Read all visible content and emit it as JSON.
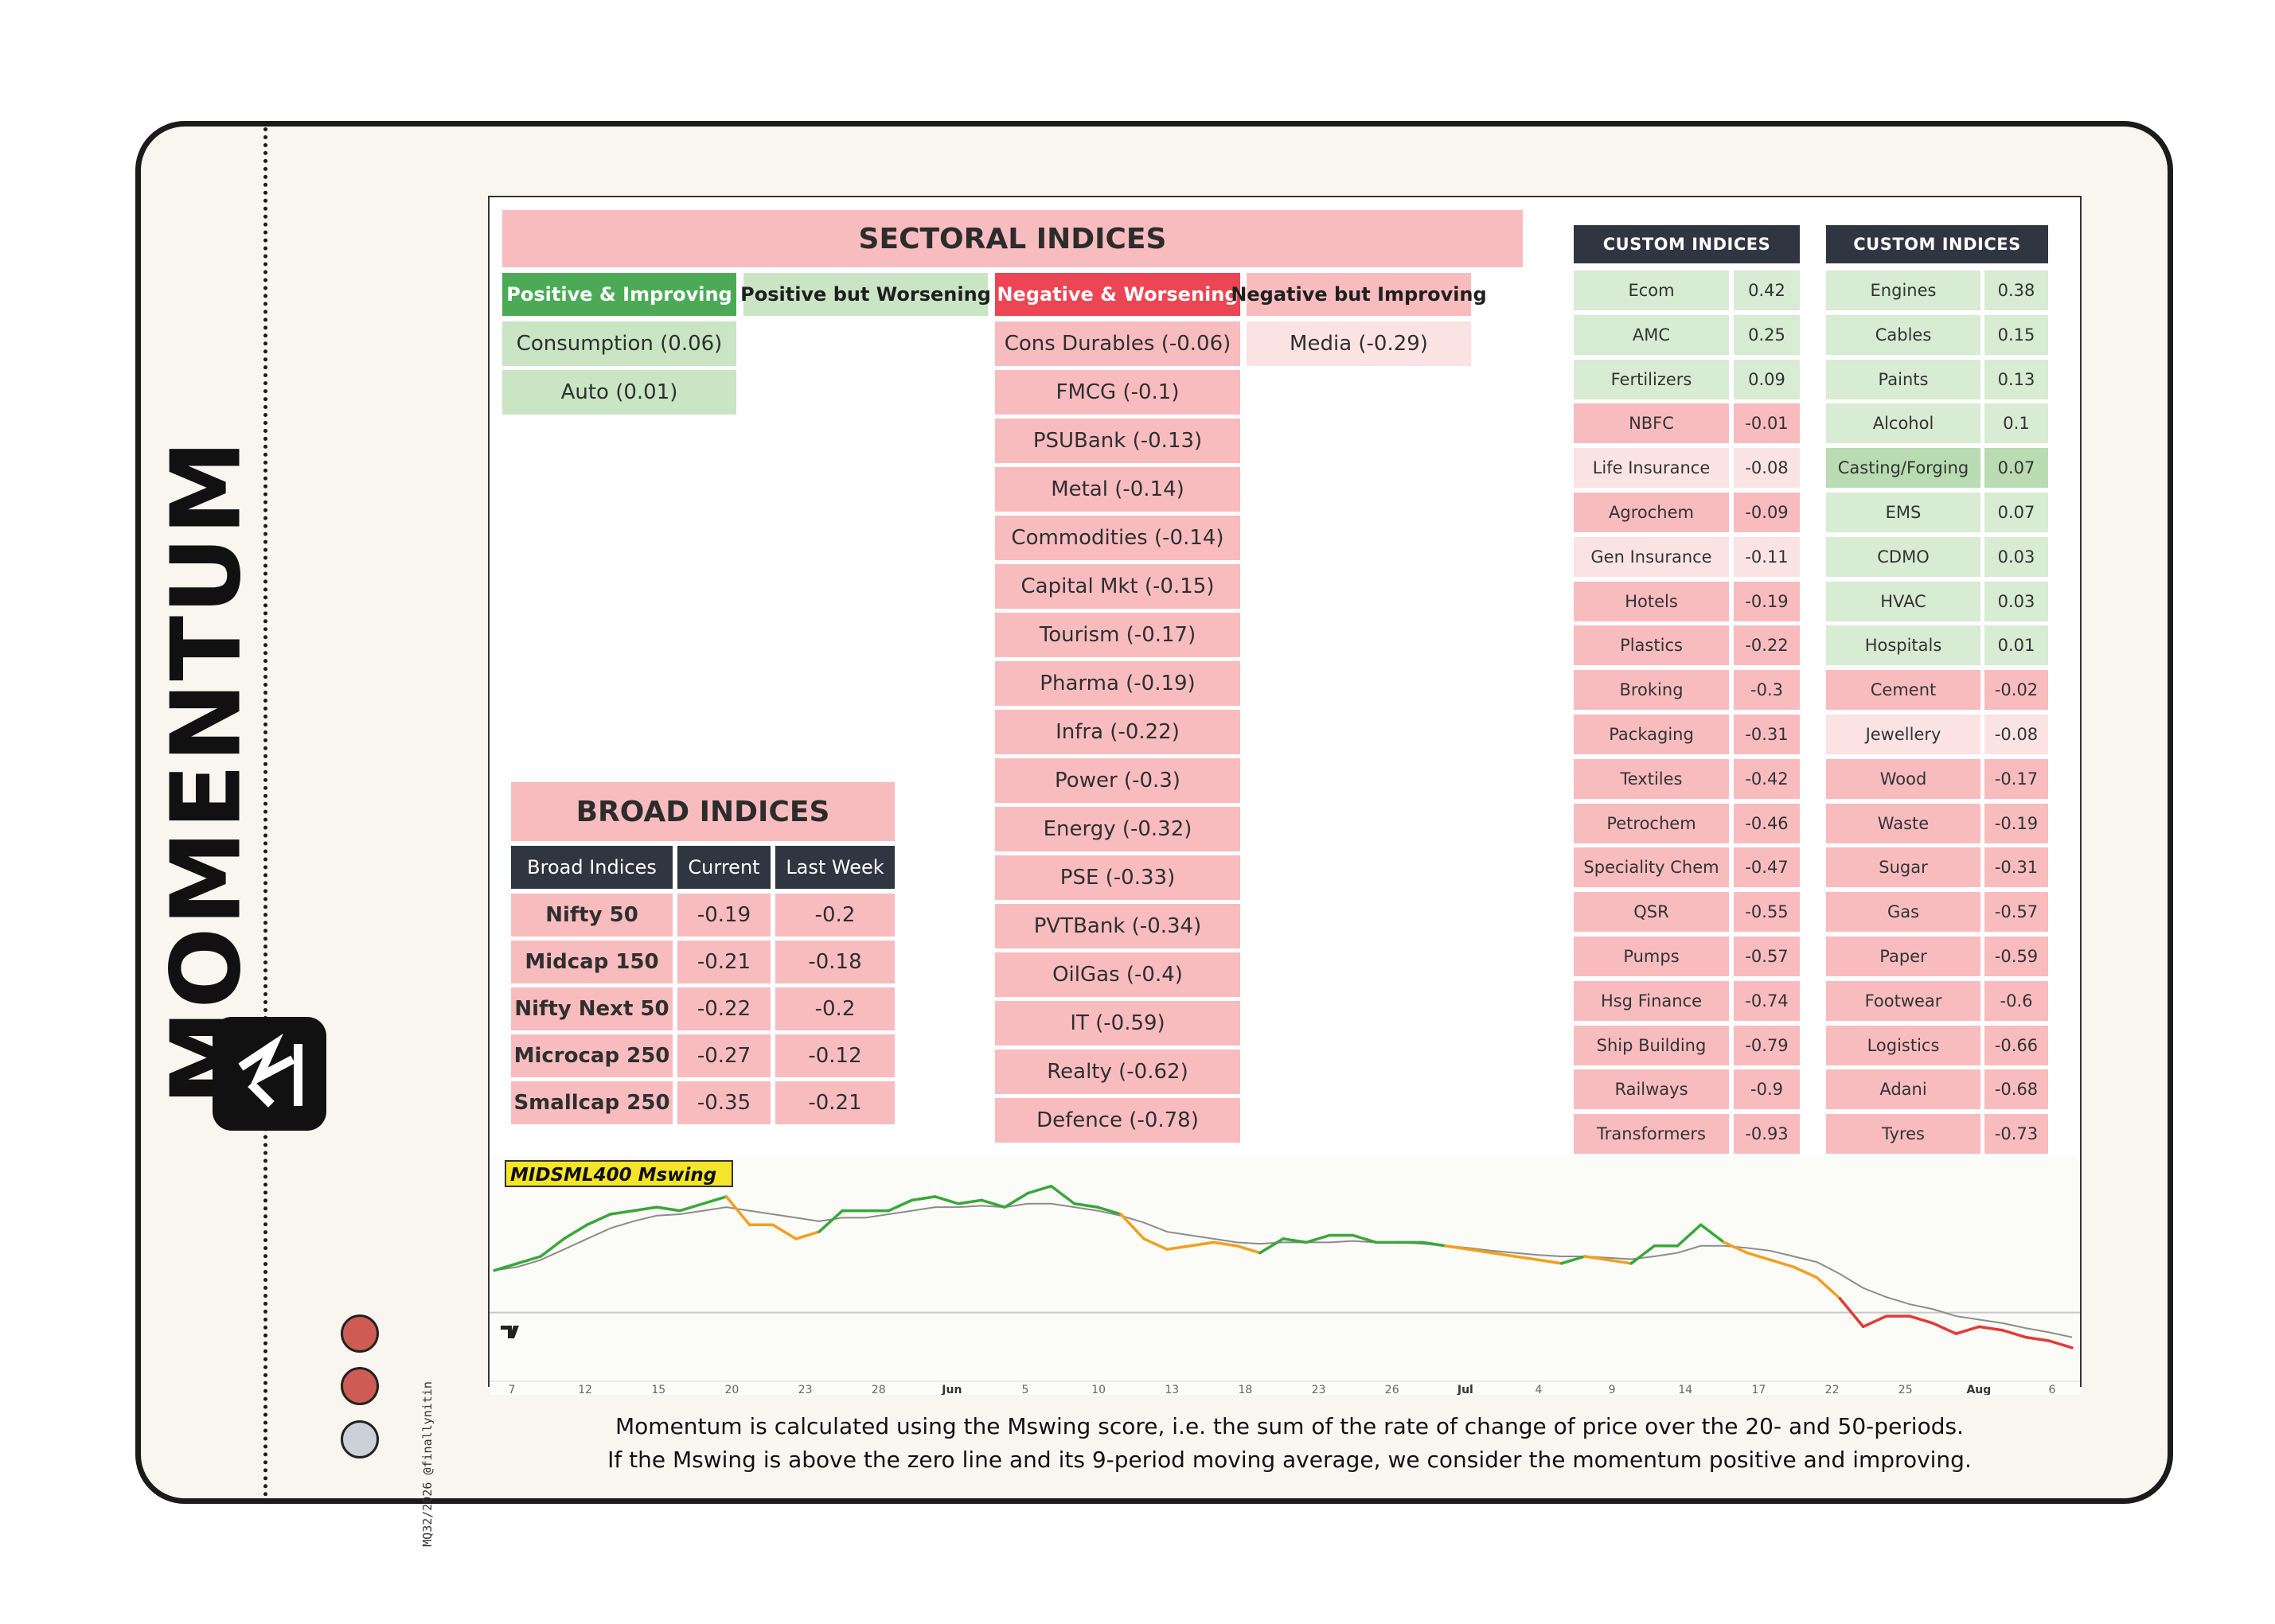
{
  "brand": {
    "wordmark": "MOMENTUM",
    "footer_code": "MQ32/2026 @finallynitin",
    "status_dots": [
      "#cf5b55",
      "#cf5b55",
      "#ccd0d9"
    ]
  },
  "sectoral": {
    "title": "SECTORAL INDICES",
    "columns": [
      {
        "header": "Positive & Improving",
        "header_bg": "#4caa57",
        "header_fg": "#ffffff",
        "cell_bg": "#c9e5c4",
        "items": [
          "Consumption (0.06)",
          "Auto (0.01)"
        ]
      },
      {
        "header": "Positive but Worsening",
        "header_bg": "#c9e5c4",
        "header_fg": "#1f1f1f",
        "cell_bg": "#c9e5c4",
        "items": []
      },
      {
        "header": "Negative & Worsening",
        "header_bg": "#ec4553",
        "header_fg": "#ffffff",
        "cell_bg": "#f8bcbf",
        "items": [
          "Cons Durables (-0.06)",
          "FMCG (-0.1)",
          "PSUBank (-0.13)",
          "Metal (-0.14)",
          "Commodities (-0.14)",
          "Capital Mkt (-0.15)",
          "Tourism (-0.17)",
          "Pharma (-0.19)",
          "Infra (-0.22)",
          "Power (-0.3)",
          "Energy (-0.32)",
          "PSE (-0.33)",
          "PVTBank (-0.34)",
          "OilGas (-0.4)",
          "IT (-0.59)",
          "Realty (-0.62)",
          "Defence (-0.78)"
        ]
      },
      {
        "header": "Negative but Improving",
        "header_bg": "#f8bcbf",
        "header_fg": "#1f1f1f",
        "cell_bg": "#fbe3e3",
        "items": [
          "Media (-0.29)"
        ]
      }
    ]
  },
  "broad": {
    "title": "BROAD INDICES",
    "headers": [
      "Broad Indices",
      "Current",
      "Last Week"
    ],
    "rows": [
      [
        "Nifty 50",
        "-0.19",
        "-0.2"
      ],
      [
        "Midcap 150",
        "-0.21",
        "-0.18"
      ],
      [
        "Nifty Next 50",
        "-0.22",
        "-0.2"
      ],
      [
        "Microcap 250",
        "-0.27",
        "-0.12"
      ],
      [
        "Smallcap 250",
        "-0.35",
        "-0.21"
      ]
    ]
  },
  "custom": [
    {
      "header": "CUSTOM INDICES",
      "rows": [
        {
          "name": "Ecom",
          "value": "0.42",
          "state": "pos"
        },
        {
          "name": "AMC",
          "value": "0.25",
          "state": "pos"
        },
        {
          "name": "Fertilizers",
          "value": "0.09",
          "state": "pos"
        },
        {
          "name": "NBFC",
          "value": "-0.01",
          "state": "neg"
        },
        {
          "name": "Life Insurance",
          "value": "-0.08",
          "state": "neg_light"
        },
        {
          "name": "Agrochem",
          "value": "-0.09",
          "state": "neg"
        },
        {
          "name": "Gen Insurance",
          "value": "-0.11",
          "state": "neg_light"
        },
        {
          "name": "Hotels",
          "value": "-0.19",
          "state": "neg"
        },
        {
          "name": "Plastics",
          "value": "-0.22",
          "state": "neg"
        },
        {
          "name": "Broking",
          "value": "-0.3",
          "state": "neg"
        },
        {
          "name": "Packaging",
          "value": "-0.31",
          "state": "neg"
        },
        {
          "name": "Textiles",
          "value": "-0.42",
          "state": "neg"
        },
        {
          "name": "Petrochem",
          "value": "-0.46",
          "state": "neg"
        },
        {
          "name": "Speciality Chem",
          "value": "-0.47",
          "state": "neg"
        },
        {
          "name": "QSR",
          "value": "-0.55",
          "state": "neg"
        },
        {
          "name": "Pumps",
          "value": "-0.57",
          "state": "neg"
        },
        {
          "name": "Hsg Finance",
          "value": "-0.74",
          "state": "neg"
        },
        {
          "name": "Ship Building",
          "value": "-0.79",
          "state": "neg"
        },
        {
          "name": "Railways",
          "value": "-0.9",
          "state": "neg"
        },
        {
          "name": "Transformers",
          "value": "-0.93",
          "state": "neg"
        }
      ]
    },
    {
      "header": "CUSTOM INDICES",
      "rows": [
        {
          "name": "Engines",
          "value": "0.38",
          "state": "pos"
        },
        {
          "name": "Cables",
          "value": "0.15",
          "state": "pos"
        },
        {
          "name": "Paints",
          "value": "0.13",
          "state": "pos"
        },
        {
          "name": "Alcohol",
          "value": "0.1",
          "state": "pos"
        },
        {
          "name": "Casting/Forging",
          "value": "0.07",
          "state": "pos_strong"
        },
        {
          "name": "EMS",
          "value": "0.07",
          "state": "pos"
        },
        {
          "name": "CDMO",
          "value": "0.03",
          "state": "pos"
        },
        {
          "name": "HVAC",
          "value": "0.03",
          "state": "pos"
        },
        {
          "name": "Hospitals",
          "value": "0.01",
          "state": "pos"
        },
        {
          "name": "Cement",
          "value": "-0.02",
          "state": "neg"
        },
        {
          "name": "Jewellery",
          "value": "-0.08",
          "state": "neg_light"
        },
        {
          "name": "Wood",
          "value": "-0.17",
          "state": "neg"
        },
        {
          "name": "Waste",
          "value": "-0.19",
          "state": "neg"
        },
        {
          "name": "Sugar",
          "value": "-0.31",
          "state": "neg"
        },
        {
          "name": "Gas",
          "value": "-0.57",
          "state": "neg"
        },
        {
          "name": "Paper",
          "value": "-0.59",
          "state": "neg"
        },
        {
          "name": "Footwear",
          "value": "-0.6",
          "state": "neg"
        },
        {
          "name": "Logistics",
          "value": "-0.66",
          "state": "neg"
        },
        {
          "name": "Adani",
          "value": "-0.68",
          "state": "neg"
        },
        {
          "name": "Tyres",
          "value": "-0.73",
          "state": "neg"
        }
      ]
    }
  ],
  "state_colors": {
    "pos": "#d8ebd3",
    "pos_strong": "#b9dcb2",
    "neg": "#f8bcbf",
    "neg_light": "#fbe3e3"
  },
  "chart_data": {
    "type": "line",
    "title": "MIDSML400 Mswing",
    "x_tick_labels": [
      "7",
      "12",
      "15",
      "20",
      "23",
      "28",
      "Jun",
      "5",
      "10",
      "13",
      "18",
      "23",
      "26",
      "Jul",
      "4",
      "9",
      "14",
      "17",
      "22",
      "25",
      "Aug",
      "6"
    ],
    "zero_line": 0,
    "ylim": [
      -1.0,
      2.0
    ],
    "series": [
      {
        "name": "Mswing",
        "values": [
          0.6,
          0.7,
          0.8,
          1.05,
          1.25,
          1.4,
          1.45,
          1.5,
          1.45,
          1.55,
          1.65,
          1.25,
          1.25,
          1.05,
          1.15,
          1.45,
          1.45,
          1.45,
          1.6,
          1.65,
          1.55,
          1.6,
          1.5,
          1.7,
          1.8,
          1.55,
          1.5,
          1.4,
          1.05,
          0.9,
          0.95,
          1.0,
          0.95,
          0.85,
          1.05,
          1.0,
          1.1,
          1.1,
          1.0,
          1.0,
          1.0,
          0.95,
          0.9,
          0.85,
          0.8,
          0.75,
          0.7,
          0.8,
          0.75,
          0.7,
          0.95,
          0.95,
          1.25,
          1.0,
          0.85,
          0.75,
          0.65,
          0.5,
          0.2,
          -0.2,
          -0.05,
          -0.05,
          -0.15,
          -0.3,
          -0.2,
          -0.25,
          -0.35,
          -0.4,
          -0.5
        ],
        "color_positive_improving": "#3aa63a",
        "color_positive_worsening": "#f0a020",
        "color_negative": "#e53935"
      },
      {
        "name": "9-period MA",
        "values": [
          0.6,
          0.65,
          0.75,
          0.9,
          1.05,
          1.2,
          1.3,
          1.38,
          1.4,
          1.45,
          1.5,
          1.45,
          1.4,
          1.35,
          1.3,
          1.35,
          1.35,
          1.4,
          1.45,
          1.5,
          1.5,
          1.52,
          1.5,
          1.55,
          1.55,
          1.5,
          1.45,
          1.38,
          1.28,
          1.15,
          1.1,
          1.05,
          1.0,
          0.98,
          1.0,
          1.0,
          1.0,
          1.02,
          1.0,
          1.0,
          0.98,
          0.95,
          0.92,
          0.88,
          0.85,
          0.82,
          0.8,
          0.8,
          0.78,
          0.76,
          0.8,
          0.85,
          0.95,
          0.95,
          0.92,
          0.88,
          0.8,
          0.72,
          0.55,
          0.35,
          0.22,
          0.12,
          0.05,
          -0.05,
          -0.1,
          -0.15,
          -0.22,
          -0.28,
          -0.35
        ],
        "color": "#8c8c8c"
      }
    ]
  },
  "caption": {
    "line1": "Momentum is calculated using the Mswing score, i.e. the sum of the rate of change of price over the 20- and 50-periods.",
    "line2": "If the Mswing is above the zero line and its 9-period moving average, we consider the momentum positive and improving."
  }
}
